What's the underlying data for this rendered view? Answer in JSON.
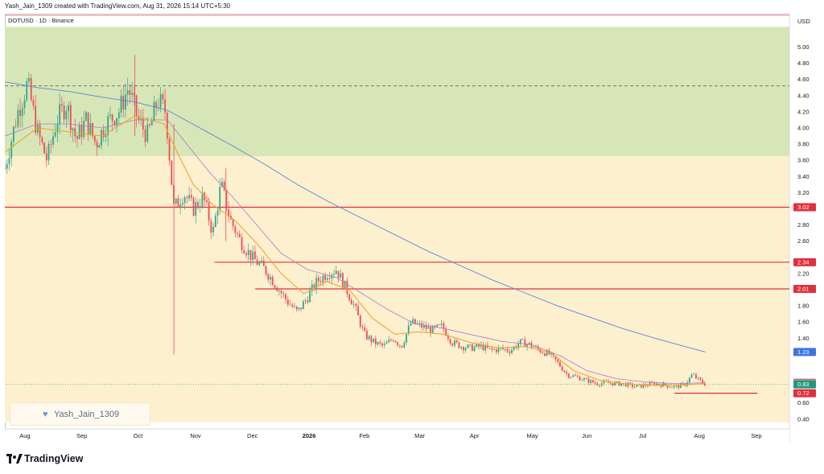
{
  "header": {
    "text": "Yash_Jain_1309 created with TradingView.com, Aug 31, 2026 15:14 UTC+5:30"
  },
  "symbol_label": "DOTUSD · 1D · Binance",
  "currency": "USD",
  "watermark": {
    "text": "Yash_Jain_1309",
    "icon": "heart-icon"
  },
  "footer": {
    "brand": "TradingView",
    "icon": "tradingview-logo-icon"
  },
  "colors": {
    "zone_upper": "#d7e6b6",
    "zone_lower": "#fdf0cf",
    "candle_up": "#2ea88c",
    "candle_down": "#ee4d58",
    "ma_fast": "#f2a52c",
    "ma_mid": "#b576c3",
    "ma_slow": "#5b86d6",
    "level_line": "#e0303d"
  },
  "chart_data": {
    "type": "candlestick",
    "title": "DOTUSD · 1D · Binance",
    "ylabel": "USD",
    "ylim": [
      0.36,
      5.25
    ],
    "y_ticks": [
      0.4,
      0.6,
      1.4,
      1.6,
      1.8,
      2.0,
      2.2,
      2.6,
      2.8,
      3.2,
      3.4,
      3.6,
      3.8,
      4.0,
      4.2,
      4.4,
      4.6,
      4.8,
      5.0
    ],
    "x_ticks": [
      "Aug",
      "Sep",
      "Oct",
      "Nov",
      "Dec",
      "2026",
      "Feb",
      "Mar",
      "Apr",
      "May",
      "Jun",
      "Jul",
      "Aug",
      "Sep"
    ],
    "grid": false,
    "support_resistance_levels": [
      3.02,
      2.34,
      2.01,
      0.72
    ],
    "price_tags": [
      {
        "value": 3.02,
        "label": "3.02",
        "color": "#e0303d"
      },
      {
        "value": 2.34,
        "label": "2.34",
        "color": "#e0303d"
      },
      {
        "value": 2.01,
        "label": "2.01",
        "color": "#e0303d"
      },
      {
        "value": 1.23,
        "label": "1.23",
        "color": "#3f74e0"
      },
      {
        "value": 0.85,
        "label": "0.85",
        "color": "#a44fc7"
      },
      {
        "value": 0.84,
        "label": "0.84",
        "color": "#f2a52c"
      },
      {
        "value": 0.83,
        "label": "0.83",
        "color": "#1f9a7a"
      },
      {
        "value": 0.72,
        "label": "0.72",
        "color": "#e0303d"
      }
    ],
    "zones": [
      {
        "name": "upper",
        "from": 3.65,
        "to": 5.25
      },
      {
        "name": "lower",
        "from": 0.36,
        "to": 3.65
      }
    ],
    "dashed_level": 4.52,
    "current_price_line": 0.83,
    "price_path": [
      [
        0.0,
        3.5
      ],
      [
        0.8,
        4.2
      ],
      [
        1.4,
        4.55
      ],
      [
        2.0,
        3.95
      ],
      [
        2.6,
        3.6
      ],
      [
        3.2,
        4.1
      ],
      [
        3.8,
        4.3
      ],
      [
        4.4,
        3.85
      ],
      [
        5.0,
        4.1
      ],
      [
        5.6,
        3.8
      ],
      [
        6.2,
        4.05
      ],
      [
        7.0,
        4.2
      ],
      [
        7.6,
        4.5
      ],
      [
        8.2,
        4.1
      ],
      [
        8.8,
        3.9
      ],
      [
        9.4,
        4.35
      ],
      [
        9.9,
        4.2
      ],
      [
        10.4,
        3.0
      ],
      [
        11.0,
        3.2
      ],
      [
        11.6,
        3.0
      ],
      [
        12.2,
        3.15
      ],
      [
        12.8,
        2.7
      ],
      [
        13.3,
        3.3
      ],
      [
        13.9,
        2.85
      ],
      [
        14.5,
        2.6
      ],
      [
        15.2,
        2.4
      ],
      [
        16.0,
        2.25
      ],
      [
        16.7,
        2.05
      ],
      [
        17.4,
        1.85
      ],
      [
        18.0,
        1.72
      ],
      [
        18.6,
        1.9
      ],
      [
        19.2,
        2.1
      ],
      [
        19.8,
        2.2
      ],
      [
        20.4,
        2.25
      ],
      [
        20.9,
        2.05
      ],
      [
        21.5,
        1.8
      ],
      [
        22.1,
        1.45
      ],
      [
        22.7,
        1.35
      ],
      [
        23.3,
        1.3
      ],
      [
        23.9,
        1.4
      ],
      [
        24.4,
        1.3
      ],
      [
        25.0,
        1.6
      ],
      [
        25.6,
        1.55
      ],
      [
        26.3,
        1.5
      ],
      [
        26.9,
        1.55
      ],
      [
        27.5,
        1.35
      ],
      [
        28.1,
        1.3
      ],
      [
        28.7,
        1.28
      ],
      [
        29.3,
        1.3
      ],
      [
        29.9,
        1.25
      ],
      [
        30.5,
        1.27
      ],
      [
        31.1,
        1.25
      ],
      [
        31.7,
        1.35
      ],
      [
        32.3,
        1.32
      ],
      [
        32.9,
        1.25
      ],
      [
        33.5,
        1.2
      ],
      [
        34.0,
        1.1
      ],
      [
        34.6,
        0.95
      ],
      [
        35.2,
        0.92
      ],
      [
        35.8,
        0.88
      ],
      [
        36.4,
        0.84
      ],
      [
        37.0,
        0.85
      ],
      [
        37.6,
        0.84
      ],
      [
        38.2,
        0.83
      ],
      [
        38.8,
        0.8
      ],
      [
        39.4,
        0.82
      ],
      [
        40.0,
        0.84
      ],
      [
        40.6,
        0.82
      ],
      [
        41.2,
        0.8
      ],
      [
        41.8,
        0.82
      ],
      [
        42.3,
        0.95
      ],
      [
        42.7,
        0.88
      ],
      [
        43.1,
        0.83
      ]
    ],
    "ma_fast": [
      [
        0.0,
        3.7
      ],
      [
        2.0,
        4.0
      ],
      [
        4.0,
        3.95
      ],
      [
        6.0,
        3.9
      ],
      [
        8.0,
        4.15
      ],
      [
        9.8,
        4.05
      ],
      [
        10.6,
        3.7
      ],
      [
        11.6,
        3.3
      ],
      [
        12.8,
        3.05
      ],
      [
        14.2,
        2.85
      ],
      [
        15.6,
        2.55
      ],
      [
        17.0,
        2.2
      ],
      [
        18.4,
        1.95
      ],
      [
        19.8,
        2.1
      ],
      [
        21.2,
        2.0
      ],
      [
        22.6,
        1.65
      ],
      [
        24.0,
        1.45
      ],
      [
        25.4,
        1.48
      ],
      [
        27.0,
        1.45
      ],
      [
        28.6,
        1.35
      ],
      [
        30.4,
        1.28
      ],
      [
        32.0,
        1.3
      ],
      [
        33.6,
        1.22
      ],
      [
        35.0,
        1.0
      ],
      [
        36.6,
        0.88
      ],
      [
        38.4,
        0.83
      ],
      [
        40.2,
        0.82
      ],
      [
        41.6,
        0.82
      ],
      [
        43.1,
        0.84
      ]
    ],
    "ma_mid": [
      [
        0.0,
        3.9
      ],
      [
        2.0,
        4.05
      ],
      [
        4.0,
        4.05
      ],
      [
        6.0,
        4.0
      ],
      [
        8.0,
        4.1
      ],
      [
        10.0,
        4.1
      ],
      [
        11.2,
        3.8
      ],
      [
        12.6,
        3.45
      ],
      [
        14.0,
        3.15
      ],
      [
        15.5,
        2.8
      ],
      [
        17.0,
        2.45
      ],
      [
        18.6,
        2.25
      ],
      [
        20.4,
        2.15
      ],
      [
        22.0,
        1.95
      ],
      [
        23.6,
        1.75
      ],
      [
        25.2,
        1.58
      ],
      [
        27.0,
        1.52
      ],
      [
        28.8,
        1.44
      ],
      [
        30.6,
        1.36
      ],
      [
        32.4,
        1.32
      ],
      [
        34.2,
        1.18
      ],
      [
        35.8,
        1.0
      ],
      [
        37.6,
        0.9
      ],
      [
        39.4,
        0.86
      ],
      [
        41.2,
        0.84
      ],
      [
        43.1,
        0.85
      ]
    ],
    "ma_slow": [
      [
        0.0,
        4.57
      ],
      [
        2.0,
        4.5
      ],
      [
        4.0,
        4.45
      ],
      [
        6.0,
        4.38
      ],
      [
        8.0,
        4.32
      ],
      [
        10.0,
        4.22
      ],
      [
        12.0,
        4.0
      ],
      [
        14.0,
        3.78
      ],
      [
        16.0,
        3.55
      ],
      [
        18.0,
        3.3
      ],
      [
        20.0,
        3.08
      ],
      [
        22.0,
        2.88
      ],
      [
        24.0,
        2.68
      ],
      [
        26.0,
        2.48
      ],
      [
        28.0,
        2.3
      ],
      [
        30.0,
        2.12
      ],
      [
        32.0,
        1.96
      ],
      [
        34.0,
        1.8
      ],
      [
        36.0,
        1.66
      ],
      [
        38.0,
        1.52
      ],
      [
        40.0,
        1.4
      ],
      [
        42.0,
        1.29
      ],
      [
        43.1,
        1.23
      ]
    ]
  }
}
